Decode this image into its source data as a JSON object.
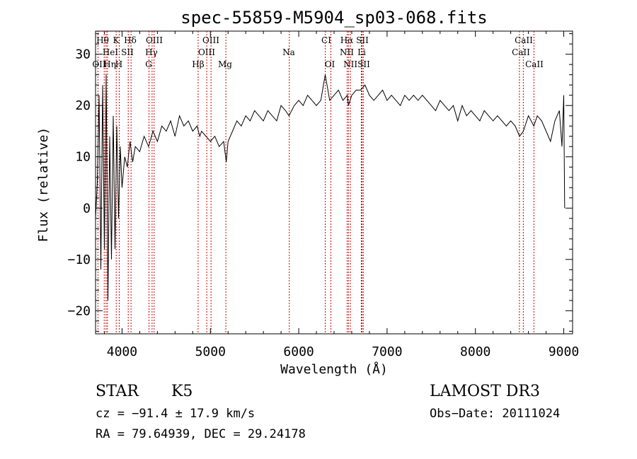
{
  "chart_data": {
    "type": "line",
    "title": "spec-55859-M5904_sp03-068.fits",
    "xlabel": "Wavelength (Å)",
    "ylabel": "Flux (relative)",
    "xlim": [
      3700,
      9100
    ],
    "ylim": [
      -24.5,
      34.5
    ],
    "xticks": [
      4000,
      5000,
      6000,
      7000,
      8000,
      9000
    ],
    "xtick_labels": [
      "4000",
      "5000",
      "6000",
      "7000",
      "8000",
      "9000"
    ],
    "yticks": [
      -20,
      -10,
      0,
      10,
      20,
      30
    ],
    "ytick_labels": [
      "−20",
      "−10",
      "0",
      "10",
      "20",
      "30"
    ],
    "series": [
      {
        "name": "flux",
        "x": [
          3700,
          3720,
          3740,
          3760,
          3780,
          3800,
          3820,
          3840,
          3860,
          3880,
          3900,
          3920,
          3940,
          3960,
          3980,
          4000,
          4030,
          4060,
          4090,
          4120,
          4150,
          4200,
          4250,
          4300,
          4350,
          4400,
          4450,
          4500,
          4550,
          4600,
          4650,
          4700,
          4750,
          4800,
          4850,
          4880,
          4900,
          4950,
          5000,
          5050,
          5100,
          5150,
          5180,
          5200,
          5250,
          5300,
          5350,
          5400,
          5450,
          5500,
          5550,
          5600,
          5650,
          5700,
          5750,
          5800,
          5850,
          5890,
          5950,
          6000,
          6050,
          6100,
          6150,
          6200,
          6250,
          6300,
          6350,
          6400,
          6450,
          6500,
          6550,
          6563,
          6600,
          6650,
          6700,
          6750,
          6800,
          6850,
          6900,
          6950,
          7000,
          7050,
          7100,
          7150,
          7200,
          7250,
          7300,
          7350,
          7400,
          7450,
          7500,
          7550,
          7600,
          7650,
          7700,
          7750,
          7800,
          7850,
          7900,
          7950,
          8000,
          8050,
          8100,
          8150,
          8200,
          8250,
          8300,
          8350,
          8400,
          8450,
          8500,
          8542,
          8600,
          8662,
          8700,
          8750,
          8800,
          8850,
          8900,
          8950,
          8980,
          9000,
          9010
        ],
        "values": [
          -2,
          5,
          22,
          -12,
          24,
          -8,
          26,
          -18,
          14,
          -10,
          18,
          -8,
          16,
          -2,
          12,
          4,
          10,
          8,
          13,
          9,
          12,
          11,
          14,
          12,
          15,
          13,
          16,
          15,
          17,
          14,
          18,
          16,
          17,
          15,
          16,
          14,
          15,
          14,
          13,
          14,
          12,
          13,
          9,
          13,
          15,
          17,
          16,
          18,
          17,
          19,
          18,
          17,
          19,
          18,
          17,
          20,
          19,
          18,
          20,
          21,
          20,
          22,
          21,
          20,
          21,
          26,
          21,
          22,
          23,
          21,
          22,
          20,
          22,
          23,
          23,
          24,
          22,
          21,
          22,
          23,
          21,
          22,
          21,
          20,
          22,
          21,
          22,
          21,
          22,
          21,
          20,
          19,
          21,
          20,
          19,
          20,
          17,
          20,
          18,
          19,
          18,
          17,
          19,
          18,
          17,
          18,
          17,
          16,
          17,
          16,
          14,
          15,
          18,
          16,
          18,
          17,
          15,
          13,
          17,
          19,
          12,
          22,
          0
        ]
      }
    ],
    "lines": [
      {
        "name": "O II",
        "x": 3727
      },
      {
        "name": "Hθ",
        "x": 3798
      },
      {
        "name": "He I",
        "x": 3819
      },
      {
        "name": "Hη",
        "x": 3835
      },
      {
        "name": "K",
        "x": 3934
      },
      {
        "name": "H",
        "x": 3968
      },
      {
        "name": "S II",
        "x": 4070
      },
      {
        "name": "Hδ",
        "x": 4102
      },
      {
        "name": "G",
        "x": 4305
      },
      {
        "name": "Hγ",
        "x": 4340
      },
      {
        "name": "O III",
        "x": 4363
      },
      {
        "name": "Hβ",
        "x": 4861
      },
      {
        "name": "O III",
        "x": 4959
      },
      {
        "name": "O III",
        "x": 5007
      },
      {
        "name": "Mg",
        "x": 5175
      },
      {
        "name": "Na",
        "x": 5893
      },
      {
        "name": "O I",
        "x": 6300
      },
      {
        "name": "O I",
        "x": 6364
      },
      {
        "name": "N II",
        "x": 6548
      },
      {
        "name": "Hα",
        "x": 6563
      },
      {
        "name": "N II",
        "x": 6584
      },
      {
        "name": "Li",
        "x": 6708
      },
      {
        "name": "S II",
        "x": 6717
      },
      {
        "name": "S II",
        "x": 6731
      },
      {
        "name": "Ca II",
        "x": 8498
      },
      {
        "name": "Ca II",
        "x": 8542
      },
      {
        "name": "Ca II",
        "x": 8662
      }
    ]
  },
  "labels": {
    "row1": [
      "Hθ",
      "K",
      "Hδ",
      "OIII",
      "OIII",
      "CI",
      "Hα",
      "SII",
      "CaII"
    ],
    "row2": [
      "HeI",
      "SII",
      "Hγ",
      "OIII",
      "Na",
      "NII",
      "Li",
      "CaII"
    ],
    "row3": [
      "OII",
      "Hη",
      "H",
      "G",
      "Hβ",
      "Mg",
      "OI",
      "NIISII",
      "CaII"
    ]
  },
  "info": {
    "class": "STAR",
    "subclass": "K5",
    "survey": "LAMOST DR3",
    "cz": "cz = −91.4 ± 17.9 km/s",
    "obs_date": "Obs−Date: 20111024",
    "coords": "RA =  79.64939, DEC =  29.24178"
  }
}
